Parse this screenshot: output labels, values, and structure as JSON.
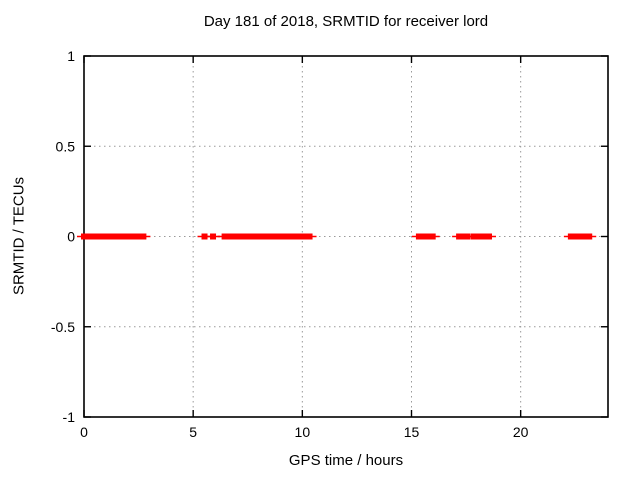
{
  "chart_data": {
    "type": "scatter",
    "title": "Day 181 of 2018, SRMTID for receiver lord",
    "xlabel": "GPS time / hours",
    "ylabel": "SRMTID / TECUs",
    "xlim": [
      0,
      24
    ],
    "ylim": [
      -1,
      1
    ],
    "xticks": [
      0,
      5,
      10,
      15,
      20
    ],
    "xtick_labels": [
      "0",
      "5",
      "10",
      "15",
      "20"
    ],
    "yticks": [
      -1,
      -0.5,
      0,
      0.5,
      1
    ],
    "ytick_labels": [
      "-1",
      "-0.5",
      "0",
      "0.5",
      "1"
    ],
    "grid": true,
    "legend": "none",
    "colors": {
      "series": "#ff0000",
      "grid": "#9a9a9a",
      "border": "#000000",
      "background": "#ffffff"
    },
    "series": [
      {
        "name": "SRMTID",
        "marker": "filled-square-with-xwhiskers",
        "y_value": 0,
        "segments_hours": [
          [
            0.0,
            1.0
          ],
          [
            1.13,
            2.72
          ],
          [
            6.44,
            9.85
          ],
          [
            9.92,
            10.33
          ],
          [
            15.34,
            15.97
          ],
          [
            17.18,
            17.57
          ],
          [
            17.86,
            18.55
          ],
          [
            22.3,
            22.6
          ],
          [
            22.68,
            23.14
          ]
        ],
        "isolated_points_hours": [
          5.52,
          5.91
        ]
      }
    ]
  }
}
